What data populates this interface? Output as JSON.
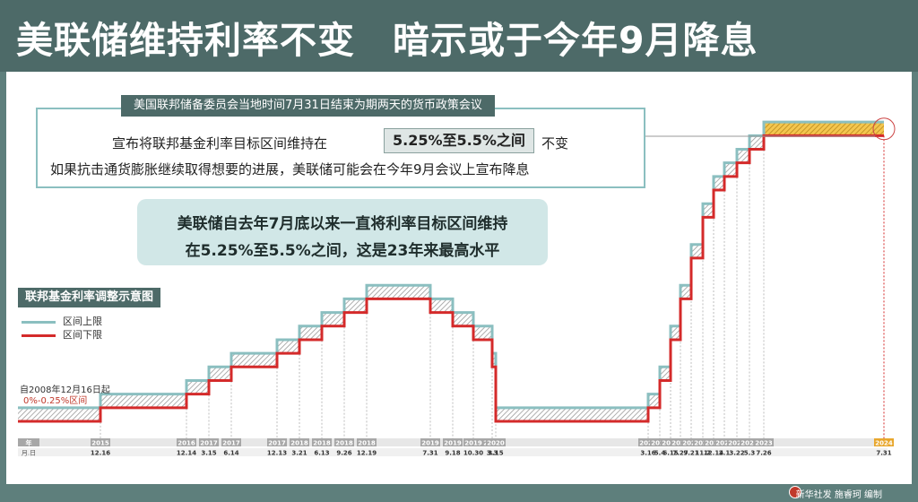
{
  "header": {
    "title": "美联储维持利率不变　暗示或于今年9月降息"
  },
  "meeting": {
    "label": "美国联邦储备委员会当地时间7月31日结束为期两天的货币政策会议",
    "line1_prefix": "宣布将联邦基金利率目标区间维持在",
    "range": "5.25%至5.5%之间",
    "line1_suffix": "不变",
    "line2": "如果抗击通货膨胀继续取得想要的进展，美联储可能会在今年9月会议上宣布降息"
  },
  "highlight": {
    "line1": "美联储自去年7月底以来一直将利率目标区间维持",
    "line2": "在5.25%至5.5%之间，这是23年来最高水平"
  },
  "chart_title": "联邦基金利率调整示意图",
  "legend": {
    "upper": "区间上限",
    "lower": "区间下限"
  },
  "start_note": {
    "since": "自2008年12月16日起",
    "range": "0%-0.25%区间"
  },
  "axis_labels": {
    "year": "年",
    "date": "月.日"
  },
  "footer": {
    "credit": "新华社发  施睿珂 编制"
  },
  "colors": {
    "header_bg": "#4d6a68",
    "accent_teal": "#8bbfc0",
    "lower_red": "#d42a2a",
    "highlight_bg": "#d1e7e7",
    "tick_gray": "#a7a7a7",
    "tick_orange": "#e8a72d"
  },
  "chart_data": {
    "type": "line",
    "title": "联邦基金利率调整示意图",
    "x_unit": "date",
    "y_unit": "percent",
    "series": [
      {
        "name": "区间上限",
        "color": "#8bbfc0"
      },
      {
        "name": "区间下限",
        "color": "#d42a2a"
      }
    ],
    "start": {
      "date": "2008-12-16",
      "lower": 0,
      "upper": 0.25
    },
    "changes": [
      {
        "year": "2015",
        "date": "12.16",
        "lower": 0.25,
        "upper": 0.5
      },
      {
        "year": "2016",
        "date": "12.14",
        "lower": 0.5,
        "upper": 0.75
      },
      {
        "year": "2017",
        "date": "3.15",
        "lower": 0.75,
        "upper": 1.0
      },
      {
        "year": "2017",
        "date": "6.14",
        "lower": 1.0,
        "upper": 1.25
      },
      {
        "year": "2017",
        "date": "12.13",
        "lower": 1.25,
        "upper": 1.5
      },
      {
        "year": "2018",
        "date": "3.21",
        "lower": 1.5,
        "upper": 1.75
      },
      {
        "year": "2018",
        "date": "6.13",
        "lower": 1.75,
        "upper": 2.0
      },
      {
        "year": "2018",
        "date": "9.26",
        "lower": 2.0,
        "upper": 2.25
      },
      {
        "year": "2018",
        "date": "12.19",
        "lower": 2.25,
        "upper": 2.5
      },
      {
        "year": "2019",
        "date": "7.31",
        "lower": 2.0,
        "upper": 2.25
      },
      {
        "year": "2019",
        "date": "9.18",
        "lower": 1.75,
        "upper": 2.0
      },
      {
        "year": "2019",
        "date": "10.30",
        "lower": 1.5,
        "upper": 1.75
      },
      {
        "year": "2020",
        "date": "3.3",
        "lower": 1.0,
        "upper": 1.25
      },
      {
        "year": "2020",
        "date": "3.15",
        "lower": 0,
        "upper": 0.25
      },
      {
        "year": "2022",
        "date": "3.16",
        "lower": 0.25,
        "upper": 0.5
      },
      {
        "year": "2022",
        "date": "5.4",
        "lower": 0.75,
        "upper": 1.0
      },
      {
        "year": "2022",
        "date": "6.15",
        "lower": 1.5,
        "upper": 1.75
      },
      {
        "year": "2022",
        "date": "7.27",
        "lower": 2.25,
        "upper": 2.5
      },
      {
        "year": "2022",
        "date": "9.21",
        "lower": 3.0,
        "upper": 3.25
      },
      {
        "year": "2022",
        "date": "11.2",
        "lower": 3.75,
        "upper": 4.0
      },
      {
        "year": "2022",
        "date": "12.14",
        "lower": 4.25,
        "upper": 4.5
      },
      {
        "year": "2023",
        "date": "2.1",
        "lower": 4.5,
        "upper": 4.75
      },
      {
        "year": "2023",
        "date": "3.22",
        "lower": 4.75,
        "upper": 5.0
      },
      {
        "year": "2023",
        "date": "5.3",
        "lower": 5.0,
        "upper": 5.25
      },
      {
        "year": "2023",
        "date": "7.26",
        "lower": 5.25,
        "upper": 5.5
      },
      {
        "year": "2024",
        "date": "7.31",
        "lower": 5.25,
        "upper": 5.5,
        "highlight": true
      }
    ]
  }
}
